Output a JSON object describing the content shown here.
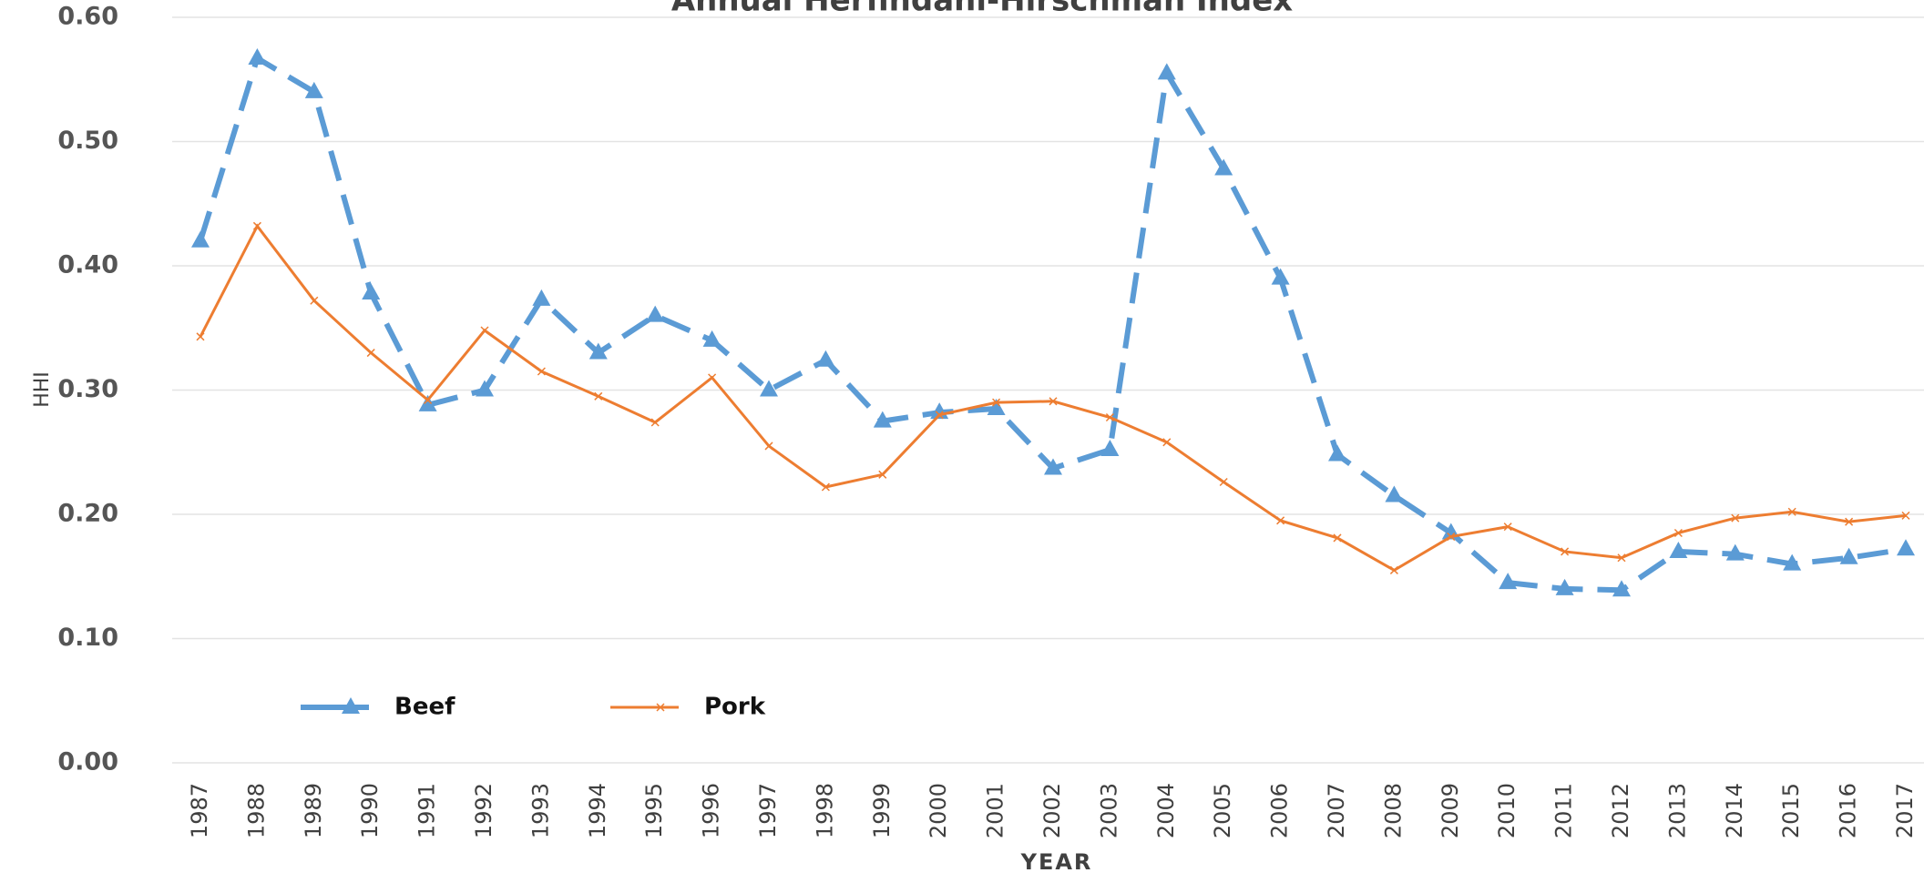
{
  "chart_data": {
    "type": "line",
    "title": "Annual Herfindahl-Hirschman Index",
    "xlabel": "YEAR",
    "ylabel": "HHI",
    "categories": [
      "1987",
      "1988",
      "1989",
      "1990",
      "1991",
      "1992",
      "1993",
      "1994",
      "1995",
      "1996",
      "1997",
      "1998",
      "1999",
      "2000",
      "2001",
      "2002",
      "2003",
      "2004",
      "2005",
      "2006",
      "2007",
      "2008",
      "2009",
      "2010",
      "2011",
      "2012",
      "2013",
      "2014",
      "2015",
      "2016",
      "2017"
    ],
    "series": [
      {
        "name": "Beef",
        "color": "#5b9bd5",
        "dashed": true,
        "marker": "triangle",
        "values": [
          0.42,
          0.567,
          0.54,
          0.378,
          0.288,
          0.3,
          0.373,
          0.33,
          0.36,
          0.34,
          0.3,
          0.324,
          0.275,
          0.282,
          0.285,
          0.237,
          0.252,
          0.555,
          0.478,
          0.39,
          0.248,
          0.215,
          0.185,
          0.145,
          0.14,
          0.139,
          0.17,
          0.168,
          0.16,
          0.165,
          0.172
        ]
      },
      {
        "name": "Pork",
        "color": "#ed7d31",
        "dashed": false,
        "marker": "x",
        "values": [
          0.343,
          0.432,
          0.372,
          0.33,
          0.292,
          0.348,
          0.315,
          0.295,
          0.274,
          0.31,
          0.255,
          0.222,
          0.232,
          0.28,
          0.29,
          0.291,
          0.278,
          0.258,
          0.226,
          0.195,
          0.181,
          0.155,
          0.182,
          0.19,
          0.17,
          0.165,
          0.185,
          0.197,
          0.202,
          0.194,
          0.199
        ]
      }
    ],
    "ylim": [
      0,
      0.6
    ],
    "yticks": [
      {
        "value": 0,
        "label": "0.00"
      },
      {
        "value": 0.1,
        "label": "0.10"
      },
      {
        "value": 0.2,
        "label": "0.20"
      },
      {
        "value": 0.3,
        "label": "0.30"
      },
      {
        "value": 0.4,
        "label": "0.40"
      },
      {
        "value": 0.5,
        "label": "0.50"
      },
      {
        "value": 0.6,
        "label": "0.60"
      }
    ],
    "grid": true,
    "legend": "lower left"
  }
}
